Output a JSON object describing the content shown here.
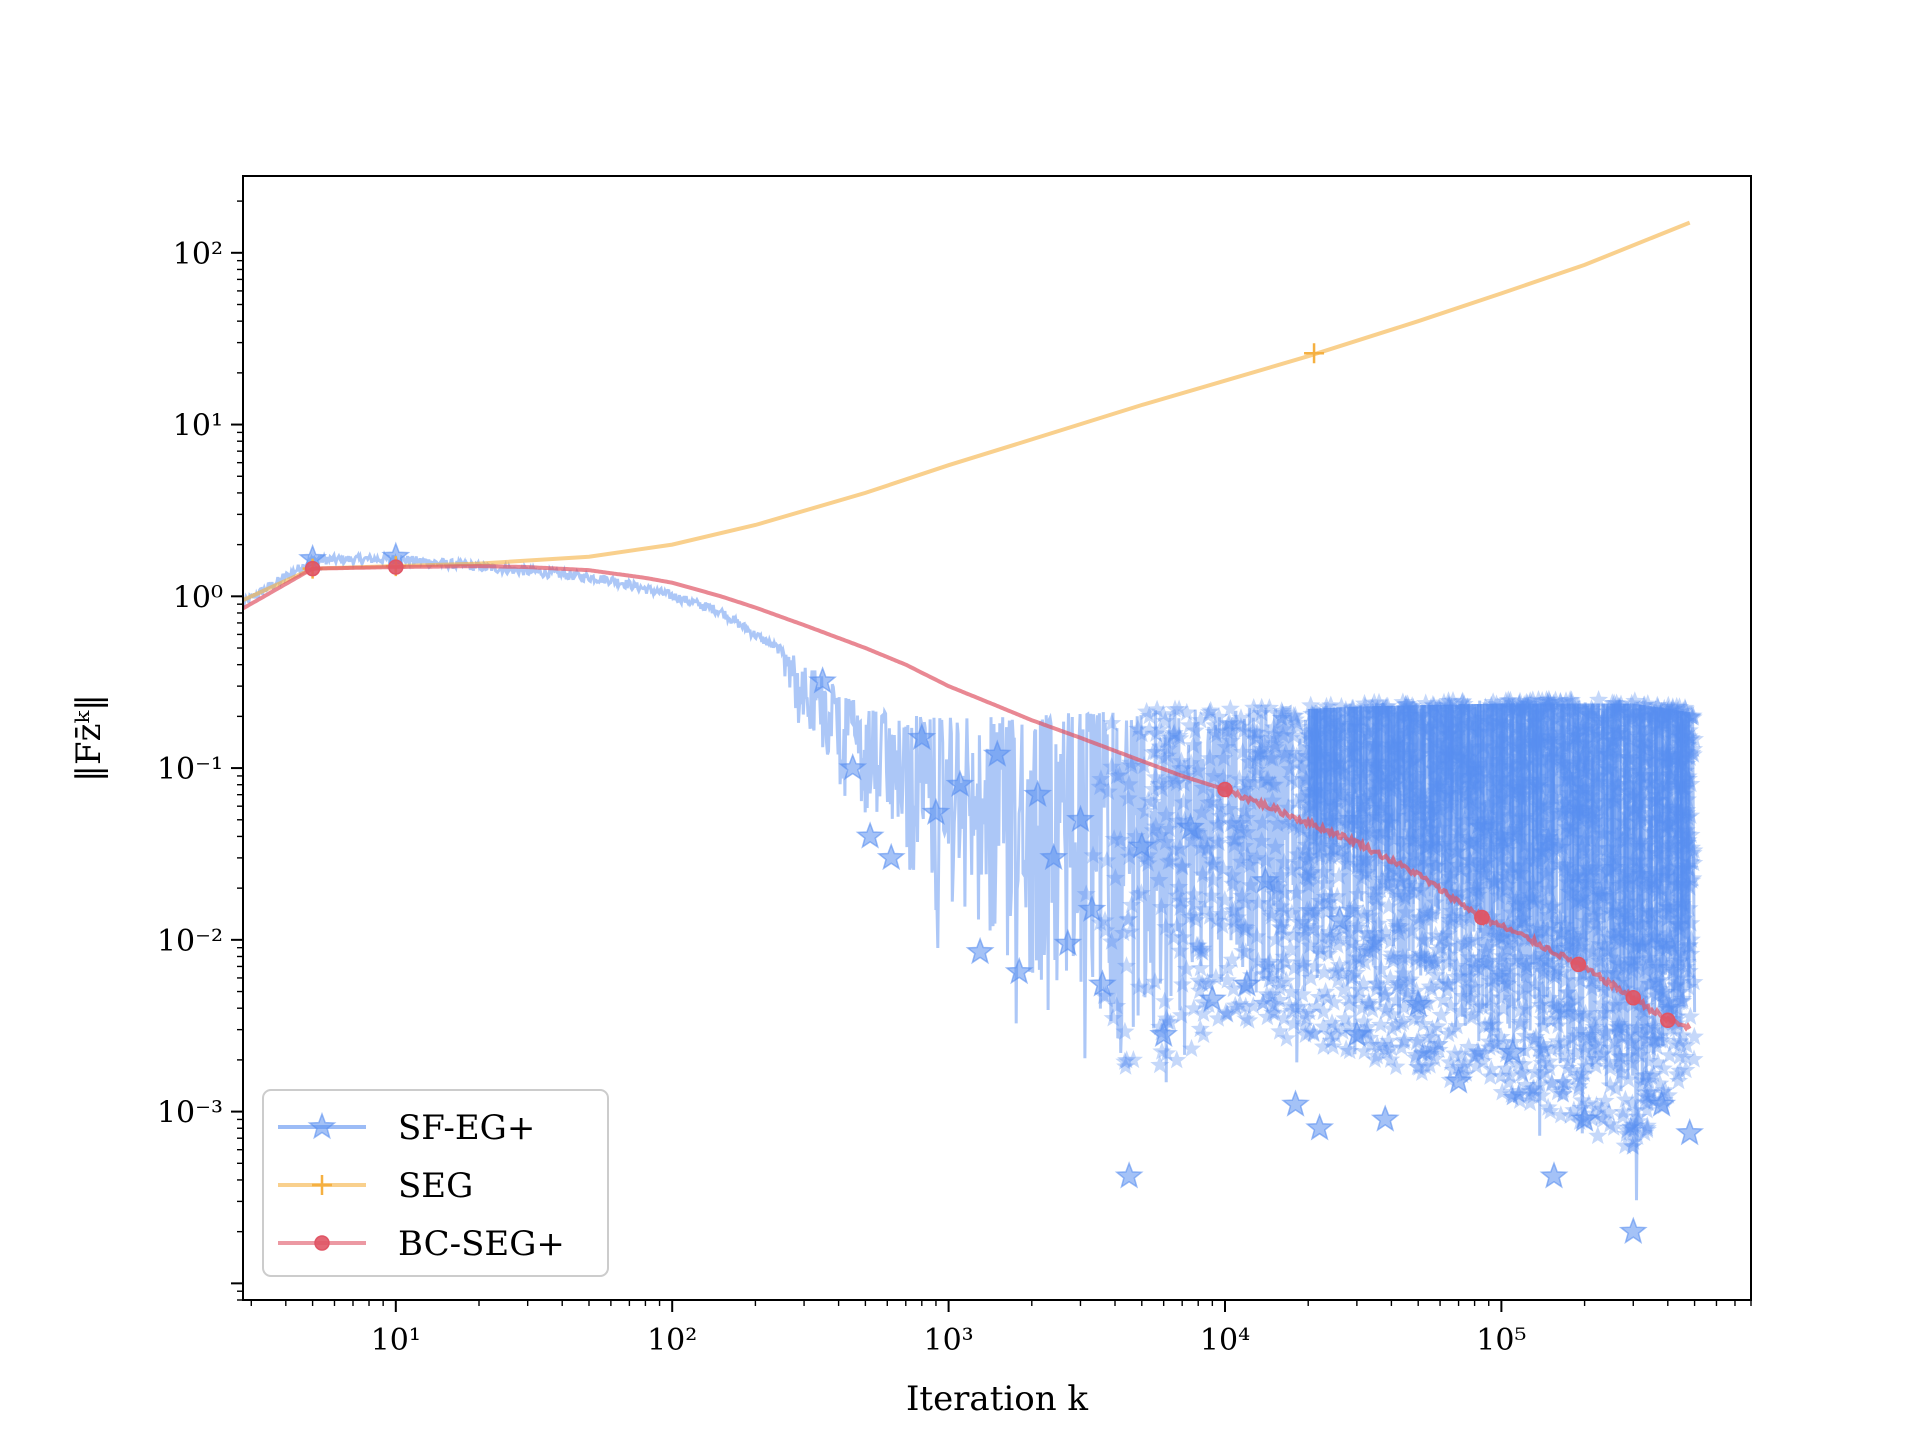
{
  "chart_data": {
    "type": "line",
    "xlabel": "Iteration k",
    "ylabel": "‖Fz̄ᵏ‖",
    "xscale": "log",
    "yscale": "log",
    "xlim": [
      2.8,
      800000
    ],
    "ylim": [
      8e-05,
      280
    ],
    "x_ticks": [
      {
        "value": 10,
        "label": "10¹"
      },
      {
        "value": 100,
        "label": "10²"
      },
      {
        "value": 1000,
        "label": "10³"
      },
      {
        "value": 10000,
        "label": "10⁴"
      },
      {
        "value": 100000,
        "label": "10⁵"
      }
    ],
    "y_ticks": [
      {
        "value": 0.001,
        "label": "10⁻³"
      },
      {
        "value": 0.01,
        "label": "10⁻²"
      },
      {
        "value": 0.1,
        "label": "10⁻¹"
      },
      {
        "value": 1,
        "label": "10⁰"
      },
      {
        "value": 10,
        "label": "10¹"
      },
      {
        "value": 100,
        "label": "10²"
      }
    ],
    "grid": false,
    "legend_position": "lower-left",
    "series": [
      {
        "name": "SF-EG+",
        "color": "#5a8ff0",
        "marker": "star",
        "upper_envelope": {
          "x": [
            2.8,
            5,
            10,
            20,
            40,
            60,
            100,
            150,
            200,
            250,
            350,
            500,
            800,
            1500,
            3000,
            6000,
            10000,
            30000,
            100000,
            300000,
            500000
          ],
          "y": [
            0.95,
            1.7,
            1.72,
            1.55,
            1.4,
            1.3,
            1.05,
            0.85,
            0.62,
            0.5,
            0.35,
            0.22,
            0.2,
            0.2,
            0.21,
            0.22,
            0.22,
            0.24,
            0.25,
            0.25,
            0.22
          ]
        },
        "lower_envelope": {
          "x": [
            250,
            400,
            700,
            1000,
            2000,
            4500,
            10000,
            30000,
            100000,
            300000,
            500000
          ],
          "y": [
            0.3,
            0.05,
            0.01,
            0.005,
            0.0015,
            0.0005,
            0.0015,
            0.0009,
            0.0005,
            0.0002,
            0.0008
          ]
        },
        "markers": [
          {
            "x": 5,
            "y": 1.65
          },
          {
            "x": 10,
            "y": 1.7
          },
          {
            "x": 350,
            "y": 0.32
          },
          {
            "x": 450,
            "y": 0.1
          },
          {
            "x": 520,
            "y": 0.04
          },
          {
            "x": 620,
            "y": 0.03
          },
          {
            "x": 800,
            "y": 0.15
          },
          {
            "x": 900,
            "y": 0.055
          },
          {
            "x": 1100,
            "y": 0.08
          },
          {
            "x": 1300,
            "y": 0.0085
          },
          {
            "x": 1500,
            "y": 0.12
          },
          {
            "x": 1800,
            "y": 0.0065
          },
          {
            "x": 2100,
            "y": 0.07
          },
          {
            "x": 2400,
            "y": 0.03
          },
          {
            "x": 2700,
            "y": 0.0095
          },
          {
            "x": 3000,
            "y": 0.05
          },
          {
            "x": 3300,
            "y": 0.015
          },
          {
            "x": 3600,
            "y": 0.0055
          },
          {
            "x": 4500,
            "y": 0.00042
          },
          {
            "x": 5000,
            "y": 0.035
          },
          {
            "x": 6000,
            "y": 0.0028
          },
          {
            "x": 7500,
            "y": 0.045
          },
          {
            "x": 9000,
            "y": 0.0045
          },
          {
            "x": 12000,
            "y": 0.0055
          },
          {
            "x": 14000,
            "y": 0.022
          },
          {
            "x": 18000,
            "y": 0.0011
          },
          {
            "x": 22000,
            "y": 0.0008
          },
          {
            "x": 26000,
            "y": 0.013
          },
          {
            "x": 30000,
            "y": 0.0028
          },
          {
            "x": 38000,
            "y": 0.0009
          },
          {
            "x": 50000,
            "y": 0.0042
          },
          {
            "x": 70000,
            "y": 0.0015
          },
          {
            "x": 110000,
            "y": 0.0022
          },
          {
            "x": 155000,
            "y": 0.00042
          },
          {
            "x": 200000,
            "y": 0.0009
          },
          {
            "x": 300000,
            "y": 0.0002
          },
          {
            "x": 380000,
            "y": 0.0011
          },
          {
            "x": 480000,
            "y": 0.00075
          }
        ]
      },
      {
        "name": "SEG",
        "color": "#f5b041",
        "marker": "plus",
        "x": [
          2.8,
          5,
          10,
          20,
          50,
          100,
          200,
          500,
          1000,
          2000,
          5000,
          10000,
          20000,
          50000,
          100000,
          200000,
          480000
        ],
        "y": [
          0.95,
          1.45,
          1.5,
          1.55,
          1.7,
          2.0,
          2.6,
          4.0,
          5.8,
          8.2,
          13.0,
          18.0,
          25.0,
          40.0,
          58.0,
          85.0,
          150.0
        ],
        "markers": [
          {
            "x": 5,
            "y": 1.45
          },
          {
            "x": 10,
            "y": 1.5
          },
          {
            "x": 21000,
            "y": 26.0
          }
        ]
      },
      {
        "name": "BC-SEG+",
        "color": "#e05565",
        "marker": "circle",
        "x": [
          2.8,
          5,
          10,
          20,
          30,
          50,
          80,
          100,
          150,
          200,
          300,
          500,
          700,
          1000,
          1500,
          2000,
          3000,
          5000,
          7000,
          10000,
          15000,
          20000,
          30000,
          50000,
          85000,
          120000,
          190000,
          300000,
          400000,
          480000
        ],
        "y": [
          0.85,
          1.45,
          1.48,
          1.5,
          1.48,
          1.42,
          1.28,
          1.2,
          1.0,
          0.86,
          0.68,
          0.5,
          0.4,
          0.3,
          0.23,
          0.19,
          0.15,
          0.11,
          0.09,
          0.075,
          0.058,
          0.048,
          0.037,
          0.024,
          0.0135,
          0.0105,
          0.0072,
          0.0046,
          0.0034,
          0.0031
        ],
        "markers": [
          {
            "x": 5,
            "y": 1.45
          },
          {
            "x": 10,
            "y": 1.48
          },
          {
            "x": 10000,
            "y": 0.075
          },
          {
            "x": 85000,
            "y": 0.0135
          },
          {
            "x": 190000,
            "y": 0.0072
          },
          {
            "x": 300000,
            "y": 0.0046
          },
          {
            "x": 400000,
            "y": 0.0034
          }
        ]
      }
    ]
  }
}
